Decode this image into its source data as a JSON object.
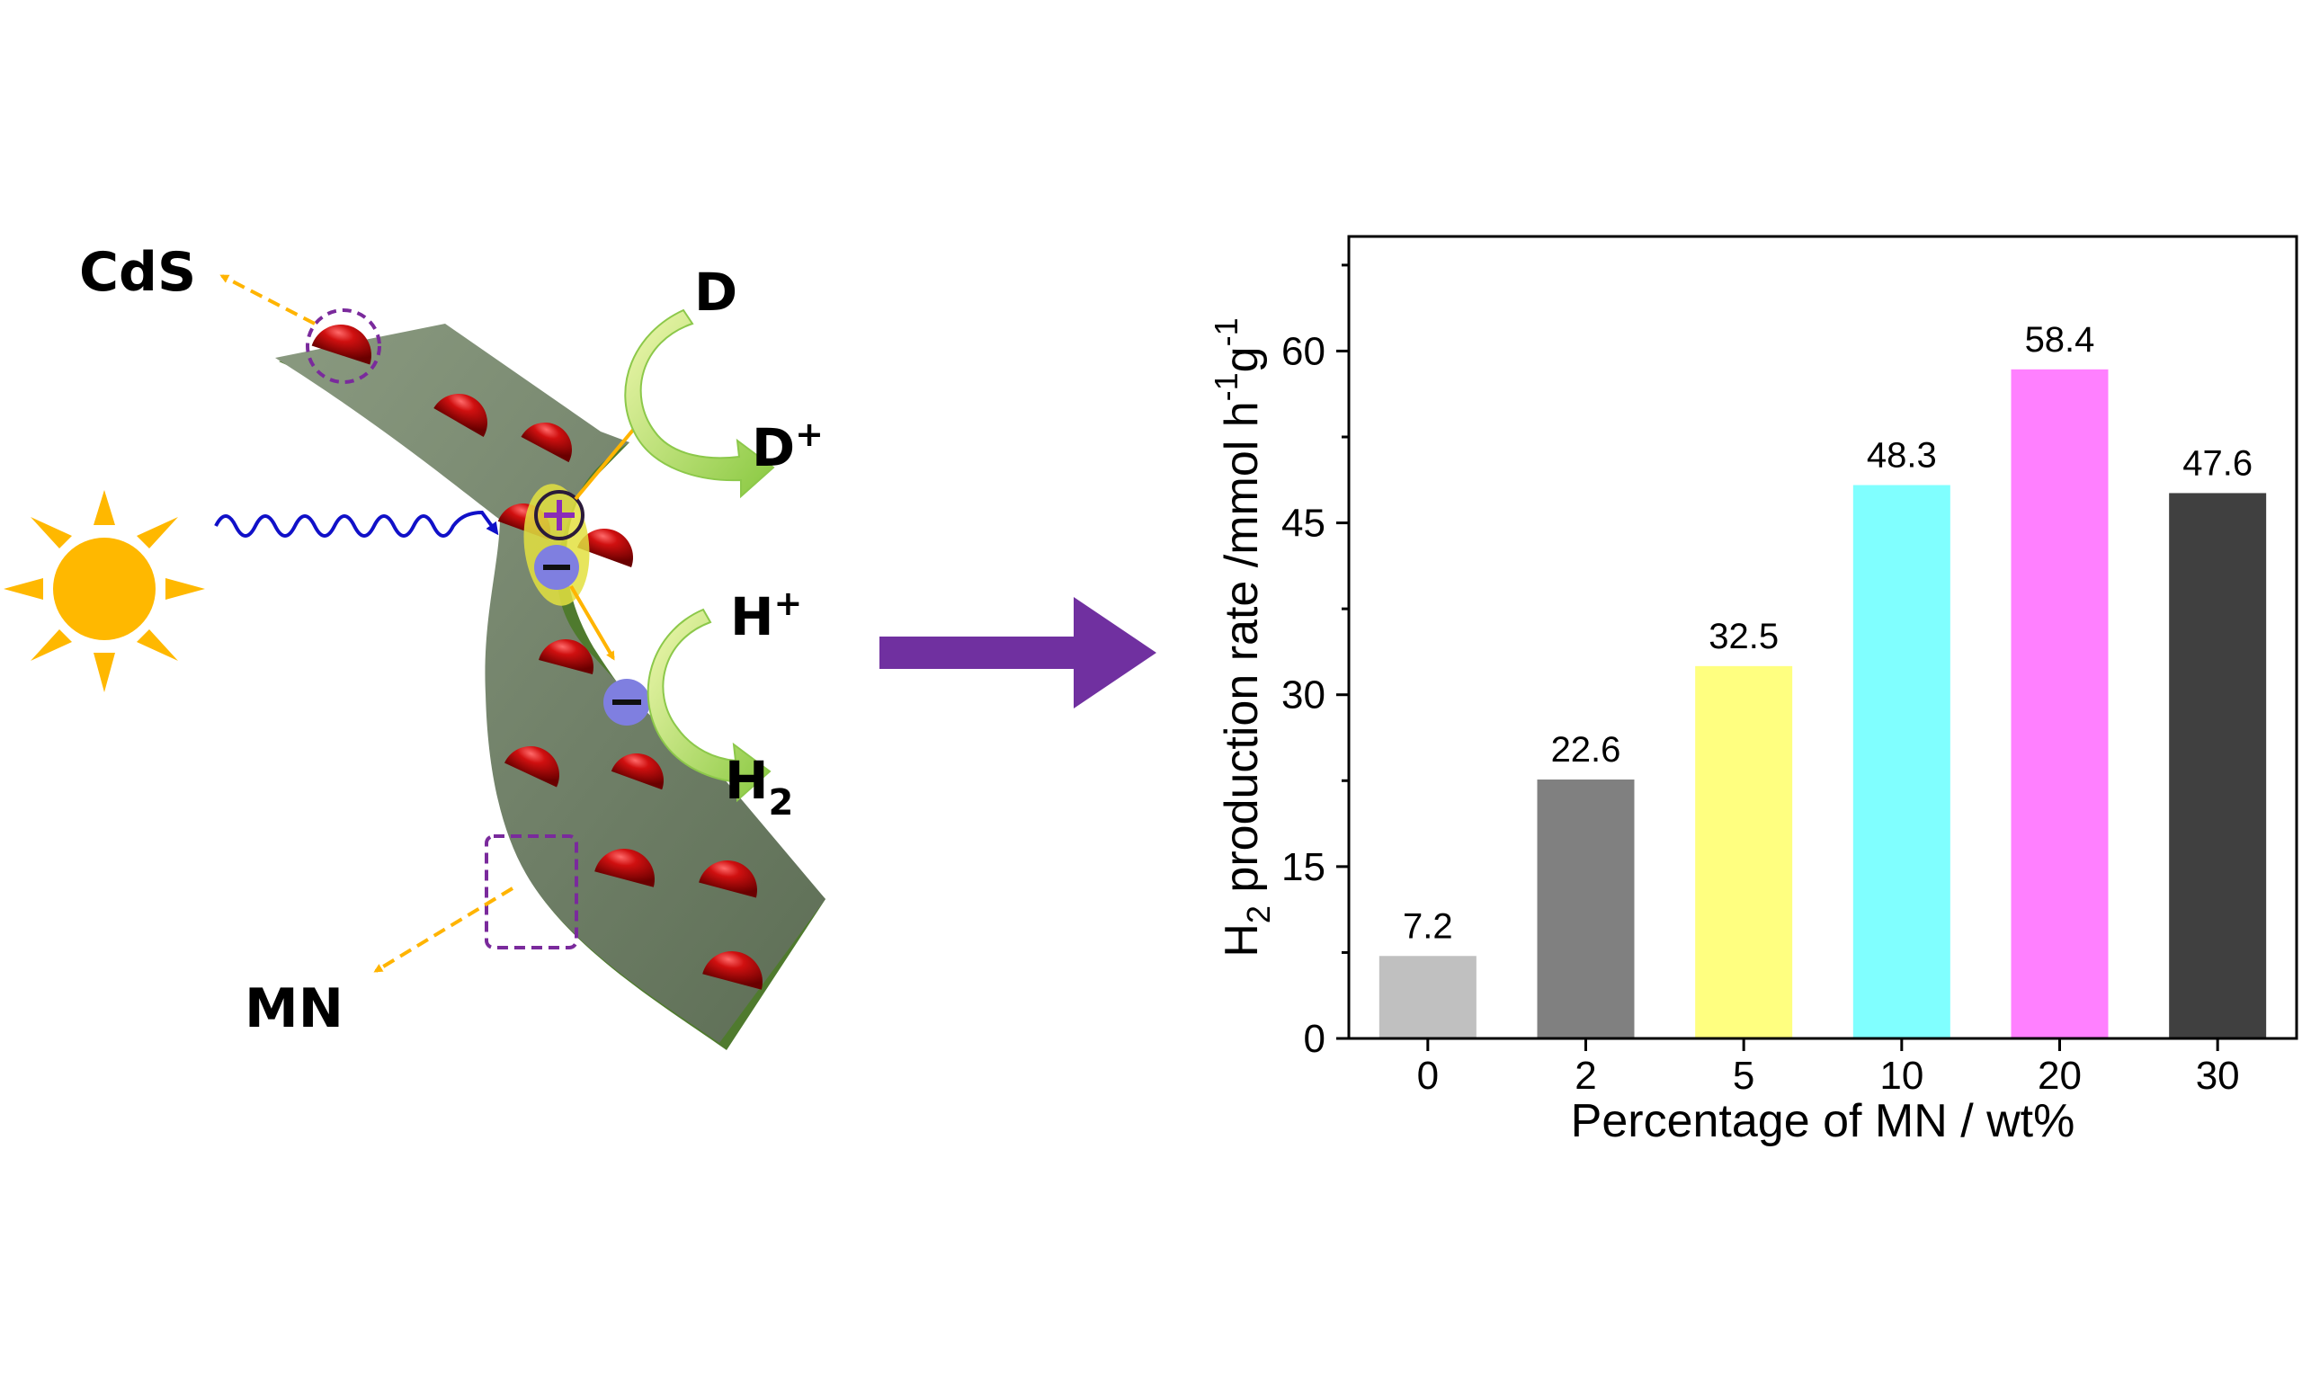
{
  "scheme": {
    "cds_label": "CdS",
    "mn_label": "MN",
    "donor_label": "D",
    "donor_ox_label": "D",
    "plus_sign": "+",
    "proton_label": "H",
    "h2_label": "H",
    "h2_subscript": "2",
    "colors": {
      "sheet": "#6f7f67",
      "sheet_edge": "#4f7a2e",
      "particle": "#c40d0d",
      "sun": "#ffb800",
      "light_wave": "#1010c8",
      "charge_arrow": "#ffb400",
      "green_arrow": "#a9d95c",
      "hole": "#8a2bb8",
      "electron": "#7f7fe0",
      "dashed_box": "#7a2a9c",
      "big_arrow": "#7030a0"
    }
  },
  "chart_data": {
    "type": "bar",
    "categories": [
      "0",
      "2",
      "5",
      "10",
      "20",
      "30"
    ],
    "values": [
      7.2,
      22.6,
      32.5,
      48.3,
      58.4,
      47.6
    ],
    "data_labels": [
      "7.2",
      "22.6",
      "32.5",
      "48.3",
      "58.4",
      "47.6"
    ],
    "bar_colors": [
      "#c0c0c0",
      "#808080",
      "#ffff80",
      "#80ffff",
      "#ff80ff",
      "#404040"
    ],
    "xlabel": "Percentage of MN / wt%",
    "ylabel": {
      "h": "H",
      "sub2": "2",
      "mid": " production rate /mmol h",
      "sup1": "-1",
      "g": "g",
      "sup2": "-1"
    },
    "ylim": [
      0,
      70
    ],
    "yticks": [
      0,
      15,
      30,
      45,
      60
    ],
    "ytick_labels": [
      "0",
      "15",
      "30",
      "45",
      "60"
    ],
    "grid": false,
    "legend": "none"
  }
}
